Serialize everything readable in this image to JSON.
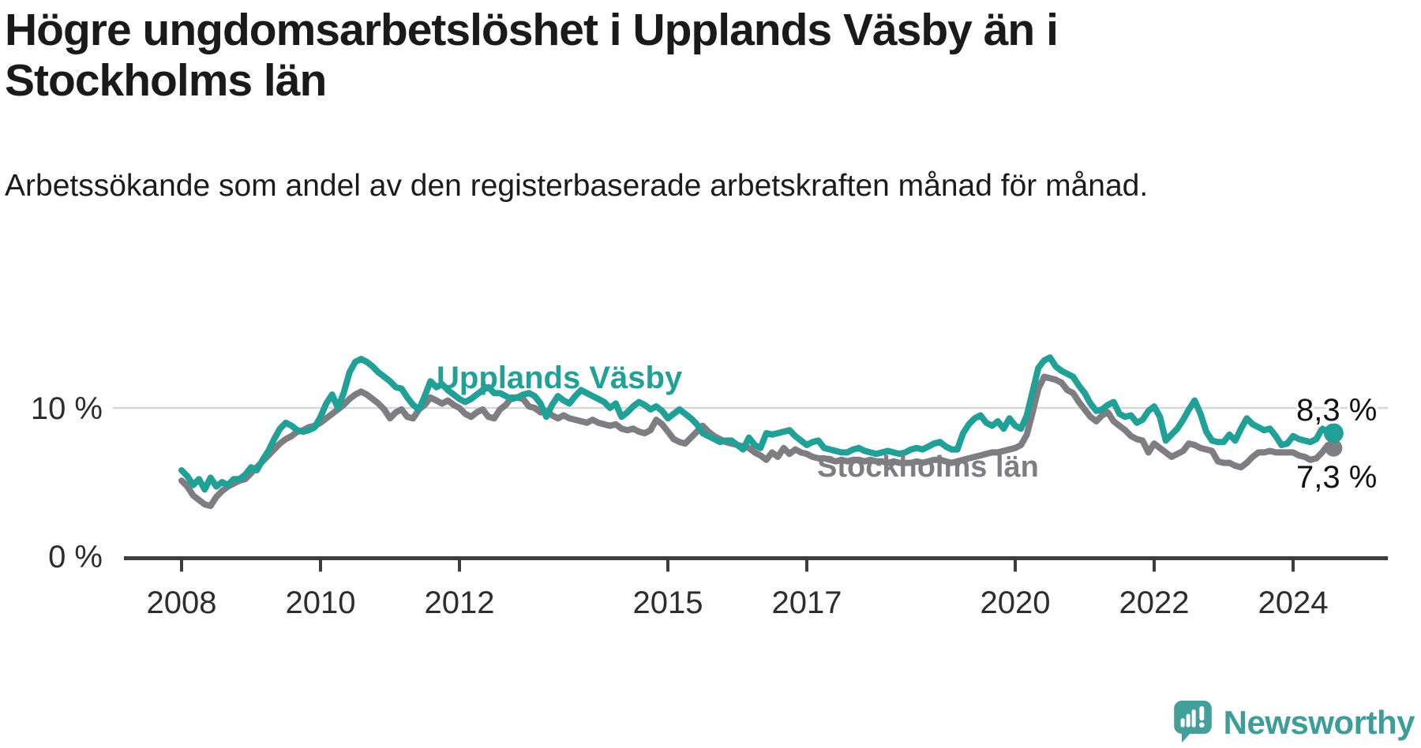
{
  "title": "Högre ungdomsarbetslöshet i Upplands Väsby än i Stockholms län",
  "subtitle": "Arbetssökande som andel av den registerbaserade arbetskraften månad för månad.",
  "branding": {
    "logo_text": "Newsworthy",
    "logo_color": "#42a09b"
  },
  "colors": {
    "upplands_vasby": "#21a098",
    "stockholms_lan": "#7e7e82",
    "gridline": "#d7d7d7",
    "axis": "#3d3d3d",
    "value_label": "#111111"
  },
  "chart_data": {
    "type": "line",
    "title": "Högre ungdomsarbetslöshet i Upplands Väsby än i Stockholms län",
    "xlabel": "",
    "ylabel": "Arbetssökande som andel av den registerbaserade arbetskraften",
    "frequency": "monthly",
    "start_year": 2008,
    "start_month": 1,
    "x_ticks": [
      2008,
      2010,
      2012,
      2015,
      2017,
      2020,
      2022,
      2024
    ],
    "y_ticks": [
      {
        "value": 10,
        "label": "10 %"
      },
      {
        "value": 0,
        "label": "0 %"
      }
    ],
    "ylim": [
      0,
      14.8
    ],
    "grid": "horizontal-10-only",
    "legend_position": "inline-labels",
    "series": [
      {
        "name": "Stockholms län",
        "color": "#7e7e82",
        "end_label": "7,3 %",
        "last_value": 7.3,
        "values": [
          5.1,
          4.7,
          4.1,
          3.8,
          3.5,
          3.4,
          4.0,
          4.4,
          4.7,
          4.9,
          5.1,
          5.2,
          5.6,
          6.0,
          6.4,
          6.8,
          7.2,
          7.6,
          7.9,
          8.1,
          8.4,
          8.5,
          8.7,
          8.8,
          9.0,
          9.3,
          9.6,
          9.9,
          10.2,
          10.6,
          10.9,
          11.1,
          10.9,
          10.6,
          10.3,
          9.9,
          9.3,
          9.7,
          9.9,
          9.4,
          9.3,
          9.9,
          10.2,
          10.7,
          10.5,
          10.3,
          10.5,
          10.2,
          10.0,
          9.6,
          9.4,
          9.7,
          9.9,
          9.4,
          9.3,
          9.9,
          10.2,
          10.7,
          10.7,
          10.6,
          10.1,
          10.0,
          9.7,
          9.8,
          9.5,
          9.3,
          9.5,
          9.3,
          9.2,
          9.1,
          9.0,
          9.2,
          9.0,
          8.9,
          8.8,
          8.9,
          8.6,
          8.5,
          8.6,
          8.4,
          8.3,
          8.5,
          9.2,
          8.9,
          8.4,
          7.9,
          7.7,
          7.6,
          8.0,
          8.4,
          8.8,
          8.4,
          8.1,
          7.9,
          7.7,
          7.6,
          7.5,
          7.4,
          7.3,
          7.0,
          6.8,
          6.5,
          7.0,
          6.7,
          7.3,
          6.9,
          7.2,
          7.0,
          6.9,
          6.7,
          6.6,
          6.6,
          6.5,
          6.4,
          6.5,
          6.4,
          6.5,
          6.5,
          6.4,
          6.5,
          6.4,
          6.4,
          6.3,
          6.4,
          6.3,
          6.3,
          6.3,
          6.4,
          6.3,
          6.4,
          6.5,
          6.5,
          6.4,
          6.3,
          6.4,
          6.5,
          6.6,
          6.7,
          6.8,
          6.9,
          7.0,
          7.0,
          7.1,
          7.2,
          7.3,
          7.5,
          8.2,
          9.7,
          11.3,
          12.1,
          12.0,
          11.9,
          11.7,
          11.2,
          11.0,
          10.4,
          9.9,
          9.4,
          9.1,
          9.5,
          9.7,
          9.1,
          8.8,
          8.5,
          8.1,
          7.9,
          7.8,
          7.0,
          7.6,
          7.3,
          7.0,
          6.7,
          6.9,
          7.1,
          7.6,
          7.5,
          7.3,
          7.2,
          7.1,
          6.4,
          6.3,
          6.3,
          6.1,
          6.0,
          6.3,
          6.7,
          7.0,
          7.0,
          7.1,
          7.0,
          7.0,
          7.0,
          7.0,
          6.8,
          6.7,
          6.5,
          6.6,
          7.0,
          7.5,
          7.3
        ]
      },
      {
        "name": "Upplands Väsby",
        "color": "#21a098",
        "end_label": "8,3 %",
        "last_value": 8.3,
        "values": [
          5.8,
          5.4,
          4.8,
          5.2,
          4.5,
          5.3,
          4.7,
          5.0,
          4.8,
          5.2,
          5.2,
          5.5,
          6.0,
          5.8,
          6.5,
          7.1,
          7.9,
          8.6,
          9.0,
          8.8,
          8.5,
          8.4,
          8.5,
          8.7,
          9.4,
          10.3,
          10.9,
          10.0,
          11.0,
          12.4,
          13.1,
          13.3,
          13.1,
          12.8,
          12.4,
          12.1,
          11.8,
          11.4,
          11.3,
          10.7,
          10.2,
          9.9,
          10.8,
          11.8,
          11.4,
          11.6,
          11.2,
          10.9,
          10.6,
          10.4,
          10.6,
          10.9,
          11.2,
          11.4,
          11.0,
          11.0,
          10.8,
          10.6,
          10.7,
          10.9,
          11.0,
          10.8,
          10.3,
          9.4,
          10.2,
          10.8,
          10.5,
          10.3,
          10.8,
          11.2,
          11.0,
          10.8,
          10.6,
          10.4,
          10.0,
          10.3,
          9.4,
          9.7,
          10.1,
          10.4,
          10.2,
          9.9,
          10.1,
          9.8,
          9.3,
          9.6,
          9.9,
          9.6,
          9.3,
          8.9,
          8.3,
          8.1,
          7.9,
          7.7,
          7.8,
          7.8,
          7.5,
          7.2,
          8.0,
          7.5,
          7.3,
          8.3,
          8.2,
          8.3,
          8.4,
          8.5,
          8.1,
          7.8,
          7.5,
          7.7,
          7.8,
          7.3,
          7.2,
          7.1,
          7.0,
          7.0,
          7.2,
          7.3,
          7.1,
          7.0,
          6.9,
          7.0,
          7.1,
          7.0,
          6.9,
          7.0,
          7.2,
          7.3,
          7.2,
          7.4,
          7.6,
          7.7,
          7.4,
          7.2,
          7.2,
          8.3,
          8.9,
          9.3,
          9.5,
          9.0,
          8.8,
          9.1,
          8.6,
          9.3,
          8.8,
          8.6,
          9.5,
          11.1,
          12.7,
          13.2,
          13.4,
          12.8,
          12.5,
          12.3,
          12.1,
          11.5,
          11.0,
          10.3,
          9.8,
          9.9,
          10.2,
          10.4,
          9.6,
          9.4,
          9.5,
          9.0,
          9.2,
          9.8,
          10.1,
          9.4,
          7.8,
          8.2,
          8.6,
          9.2,
          9.9,
          10.5,
          9.6,
          8.4,
          7.8,
          7.7,
          7.7,
          8.2,
          7.8,
          8.6,
          9.3,
          8.9,
          8.7,
          8.5,
          8.6,
          8.1,
          7.5,
          7.6,
          8.1,
          7.9,
          7.8,
          7.7,
          7.9,
          8.6,
          8.4,
          8.3
        ]
      }
    ]
  }
}
